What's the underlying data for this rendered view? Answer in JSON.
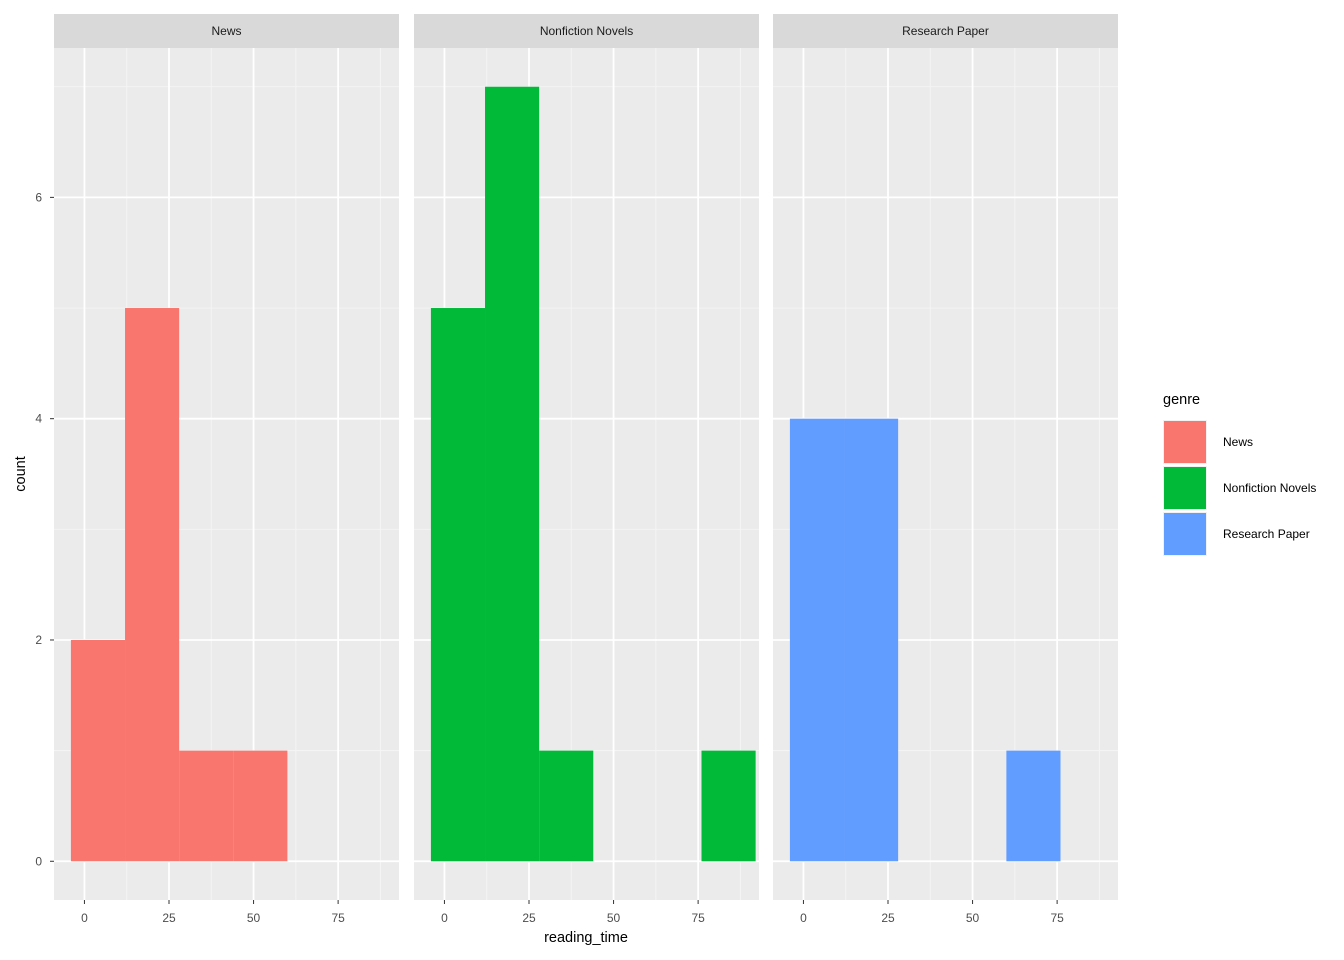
{
  "chart_data": {
    "type": "bar",
    "subtype": "faceted-histogram",
    "xlabel": "reading_time",
    "ylabel": "count",
    "xlim": [
      -9,
      93
    ],
    "ylim": [
      -0.35,
      7.35
    ],
    "x_ticks": [
      0,
      25,
      50,
      75
    ],
    "y_ticks": [
      0,
      2,
      4,
      6
    ],
    "x_minor_ticks": [
      -12.5,
      12.5,
      37.5,
      62.5,
      87.5
    ],
    "y_minor_ticks": [
      1,
      3,
      5,
      7
    ],
    "bin_width": 16,
    "grid": true,
    "legend": {
      "title": "genre",
      "position": "right",
      "entries": [
        "News",
        "Nonfiction Novels",
        "Research Paper"
      ]
    },
    "colors": {
      "News": "#F8766D",
      "Nonfiction Novels": "#00BA38",
      "Research Paper": "#619CFF"
    },
    "facets": [
      {
        "name": "News",
        "bins": [
          {
            "x0": -4,
            "x1": 12,
            "count": 2
          },
          {
            "x0": 12,
            "x1": 28,
            "count": 5
          },
          {
            "x0": 28,
            "x1": 44,
            "count": 1
          },
          {
            "x0": 44,
            "x1": 60,
            "count": 1
          }
        ]
      },
      {
        "name": "Nonfiction Novels",
        "bins": [
          {
            "x0": -4,
            "x1": 12,
            "count": 5
          },
          {
            "x0": 12,
            "x1": 28,
            "count": 7
          },
          {
            "x0": 28,
            "x1": 44,
            "count": 1
          },
          {
            "x0": 76,
            "x1": 92,
            "count": 1
          }
        ]
      },
      {
        "name": "Research Paper",
        "bins": [
          {
            "x0": -4,
            "x1": 12,
            "count": 4
          },
          {
            "x0": 12,
            "x1": 28,
            "count": 4
          },
          {
            "x0": 60,
            "x1": 76,
            "count": 1
          }
        ]
      }
    ]
  }
}
